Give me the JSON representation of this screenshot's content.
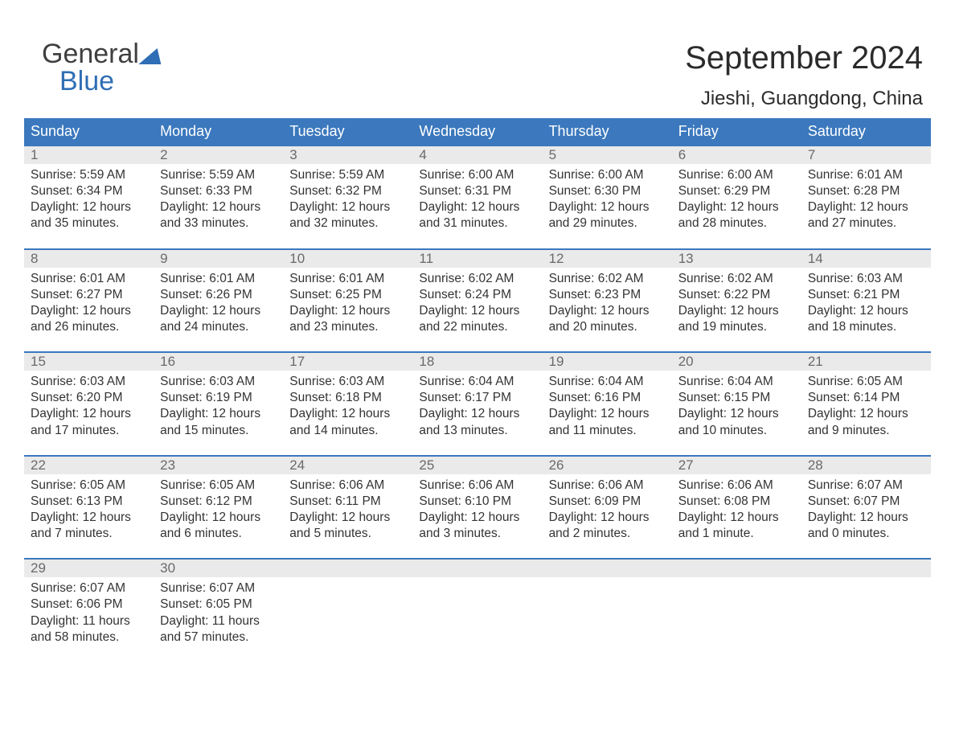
{
  "logo": {
    "line1": "General",
    "line2": "Blue"
  },
  "title": "September 2024",
  "location": "Jieshi, Guangdong, China",
  "colors": {
    "header_bg": "#3b78bd",
    "header_text": "#ffffff",
    "daynum_bg": "#eaeaea",
    "daynum_text": "#6a6a6a",
    "body_text": "#333333",
    "accent": "#2f6eb5",
    "week_border": "#3b78bd",
    "background": "#ffffff"
  },
  "fonts": {
    "title_pt": 40,
    "location_pt": 24,
    "header_pt": 18,
    "body_pt": 15.5
  },
  "day_labels": [
    "Sunday",
    "Monday",
    "Tuesday",
    "Wednesday",
    "Thursday",
    "Friday",
    "Saturday"
  ],
  "weeks": [
    [
      {
        "n": "1",
        "sr": "5:59 AM",
        "ss": "6:34 PM",
        "dl": "12 hours and 35 minutes."
      },
      {
        "n": "2",
        "sr": "5:59 AM",
        "ss": "6:33 PM",
        "dl": "12 hours and 33 minutes."
      },
      {
        "n": "3",
        "sr": "5:59 AM",
        "ss": "6:32 PM",
        "dl": "12 hours and 32 minutes."
      },
      {
        "n": "4",
        "sr": "6:00 AM",
        "ss": "6:31 PM",
        "dl": "12 hours and 31 minutes."
      },
      {
        "n": "5",
        "sr": "6:00 AM",
        "ss": "6:30 PM",
        "dl": "12 hours and 29 minutes."
      },
      {
        "n": "6",
        "sr": "6:00 AM",
        "ss": "6:29 PM",
        "dl": "12 hours and 28 minutes."
      },
      {
        "n": "7",
        "sr": "6:01 AM",
        "ss": "6:28 PM",
        "dl": "12 hours and 27 minutes."
      }
    ],
    [
      {
        "n": "8",
        "sr": "6:01 AM",
        "ss": "6:27 PM",
        "dl": "12 hours and 26 minutes."
      },
      {
        "n": "9",
        "sr": "6:01 AM",
        "ss": "6:26 PM",
        "dl": "12 hours and 24 minutes."
      },
      {
        "n": "10",
        "sr": "6:01 AM",
        "ss": "6:25 PM",
        "dl": "12 hours and 23 minutes."
      },
      {
        "n": "11",
        "sr": "6:02 AM",
        "ss": "6:24 PM",
        "dl": "12 hours and 22 minutes."
      },
      {
        "n": "12",
        "sr": "6:02 AM",
        "ss": "6:23 PM",
        "dl": "12 hours and 20 minutes."
      },
      {
        "n": "13",
        "sr": "6:02 AM",
        "ss": "6:22 PM",
        "dl": "12 hours and 19 minutes."
      },
      {
        "n": "14",
        "sr": "6:03 AM",
        "ss": "6:21 PM",
        "dl": "12 hours and 18 minutes."
      }
    ],
    [
      {
        "n": "15",
        "sr": "6:03 AM",
        "ss": "6:20 PM",
        "dl": "12 hours and 17 minutes."
      },
      {
        "n": "16",
        "sr": "6:03 AM",
        "ss": "6:19 PM",
        "dl": "12 hours and 15 minutes."
      },
      {
        "n": "17",
        "sr": "6:03 AM",
        "ss": "6:18 PM",
        "dl": "12 hours and 14 minutes."
      },
      {
        "n": "18",
        "sr": "6:04 AM",
        "ss": "6:17 PM",
        "dl": "12 hours and 13 minutes."
      },
      {
        "n": "19",
        "sr": "6:04 AM",
        "ss": "6:16 PM",
        "dl": "12 hours and 11 minutes."
      },
      {
        "n": "20",
        "sr": "6:04 AM",
        "ss": "6:15 PM",
        "dl": "12 hours and 10 minutes."
      },
      {
        "n": "21",
        "sr": "6:05 AM",
        "ss": "6:14 PM",
        "dl": "12 hours and 9 minutes."
      }
    ],
    [
      {
        "n": "22",
        "sr": "6:05 AM",
        "ss": "6:13 PM",
        "dl": "12 hours and 7 minutes."
      },
      {
        "n": "23",
        "sr": "6:05 AM",
        "ss": "6:12 PM",
        "dl": "12 hours and 6 minutes."
      },
      {
        "n": "24",
        "sr": "6:06 AM",
        "ss": "6:11 PM",
        "dl": "12 hours and 5 minutes."
      },
      {
        "n": "25",
        "sr": "6:06 AM",
        "ss": "6:10 PM",
        "dl": "12 hours and 3 minutes."
      },
      {
        "n": "26",
        "sr": "6:06 AM",
        "ss": "6:09 PM",
        "dl": "12 hours and 2 minutes."
      },
      {
        "n": "27",
        "sr": "6:06 AM",
        "ss": "6:08 PM",
        "dl": "12 hours and 1 minute."
      },
      {
        "n": "28",
        "sr": "6:07 AM",
        "ss": "6:07 PM",
        "dl": "12 hours and 0 minutes."
      }
    ],
    [
      {
        "n": "29",
        "sr": "6:07 AM",
        "ss": "6:06 PM",
        "dl": "11 hours and 58 minutes."
      },
      {
        "n": "30",
        "sr": "6:07 AM",
        "ss": "6:05 PM",
        "dl": "11 hours and 57 minutes."
      },
      null,
      null,
      null,
      null,
      null
    ]
  ],
  "labels": {
    "sunrise_prefix": "Sunrise: ",
    "sunset_prefix": "Sunset: ",
    "daylight_prefix": "Daylight: "
  }
}
